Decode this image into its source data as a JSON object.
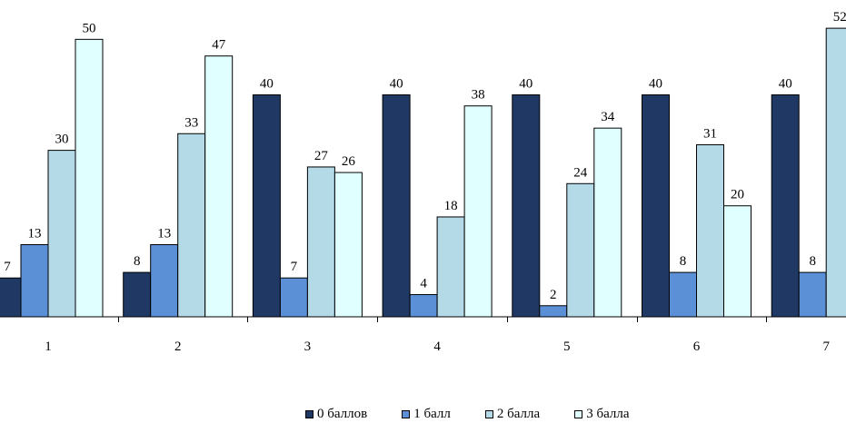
{
  "chart_data": {
    "type": "bar",
    "categories": [
      "1",
      "2",
      "3",
      "4",
      "5",
      "6",
      "7"
    ],
    "series": [
      {
        "name": "0 баллов",
        "color": "#1f3864",
        "values": [
          7,
          8,
          40,
          40,
          40,
          40,
          40
        ]
      },
      {
        "name": "1 балл",
        "color": "#5b8fd6",
        "values": [
          13,
          13,
          7,
          4,
          2,
          8,
          8
        ]
      },
      {
        "name": "2 балла",
        "color": "#b4d9e7",
        "values": [
          30,
          33,
          27,
          18,
          24,
          31,
          52
        ]
      },
      {
        "name": "3 балла",
        "color": "#e0ffff",
        "values": [
          50,
          47,
          26,
          38,
          34,
          20,
          null
        ]
      }
    ],
    "ylim": [
      0,
      53
    ],
    "grid": false,
    "legend": "bottom"
  }
}
